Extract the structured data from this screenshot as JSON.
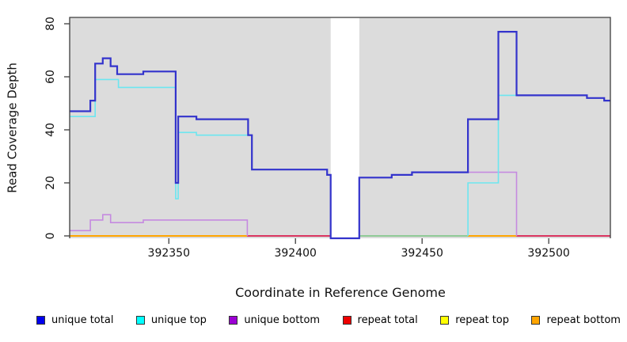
{
  "chart_data": {
    "type": "line",
    "step": true,
    "title": "",
    "xlabel": "Coordinate in Reference Genome",
    "ylabel": "Read Coverage Depth",
    "x_ticks": [
      392350,
      392400,
      392450,
      392500
    ],
    "y_ticks": [
      0,
      20,
      40,
      60,
      80
    ],
    "xlim": [
      392310.84,
      392524.34
    ],
    "ylim": [
      -0.9,
      82.39
    ],
    "grid": false,
    "plot_bg": "#dcdcdc",
    "frame_color": "#3d3d3d",
    "no_data_gap": {
      "from": 392413.9,
      "to": 392425.2
    },
    "series": [
      {
        "name": "unique total",
        "color": "#3333cc",
        "width": 2.2,
        "paths": [
          {
            "pts": [
              [
                392310.84,
                47
              ],
              [
                392319.0,
                51
              ],
              [
                392320.9,
                65
              ],
              [
                392323.9,
                67
              ],
              [
                392327.0,
                64
              ],
              [
                392329.6,
                61
              ],
              [
                392339.9,
                62
              ],
              [
                392352.7,
                20
              ],
              [
                392353.7,
                45
              ],
              [
                392360.9,
                44
              ],
              [
                392381.3,
                38
              ],
              [
                392382.8,
                25
              ],
              [
                392412.5,
                23
              ],
              [
                392413.9,
                -0.9
              ],
              [
                392425.2,
                22
              ],
              [
                392438.0,
                23
              ],
              [
                392446.0,
                24
              ],
              [
                392468.1,
                44
              ],
              [
                392480.1,
                77
              ],
              [
                392487.3,
                53
              ],
              [
                392515.1,
                52
              ],
              [
                392521.9,
                51
              ]
            ],
            "end": 392524.34
          }
        ]
      },
      {
        "name": "unique top",
        "color": "#6ce6f0",
        "width": 1.6,
        "paths": [
          {
            "pts": [
              [
                392310.84,
                45
              ],
              [
                392320.9,
                59
              ],
              [
                392330.1,
                56
              ],
              [
                392352.7,
                14
              ],
              [
                392353.7,
                39
              ],
              [
                392360.9,
                38
              ],
              [
                392382.8,
                25
              ],
              [
                392412.5,
                23
              ],
              [
                392413.9,
                0
              ]
            ],
            "end": 392413.9
          },
          {
            "pts": [
              [
                392468.1,
                0
              ],
              [
                392468.1,
                20
              ],
              [
                392480.1,
                53
              ],
              [
                392487.3,
                53
              ],
              [
                392515.1,
                52
              ],
              [
                392521.9,
                51
              ]
            ],
            "end": 392524.34
          }
        ]
      },
      {
        "name": "unique bottom",
        "color": "#c58ae0",
        "width": 1.6,
        "paths": [
          {
            "pts": [
              [
                392310.84,
                2
              ],
              [
                392319.0,
                6
              ],
              [
                392323.9,
                8
              ],
              [
                392327.0,
                5
              ],
              [
                392339.9,
                6
              ],
              [
                392381.0,
                0
              ]
            ],
            "end": 392381.0
          },
          {
            "pts": [
              [
                392425.2,
                -0.9
              ],
              [
                392425.2,
                22
              ],
              [
                392438.0,
                23
              ],
              [
                392446.0,
                24
              ],
              [
                392487.3,
                0
              ]
            ],
            "end": 392487.3
          }
        ]
      },
      {
        "name": "repeat total",
        "color": "#da3560",
        "width": 2,
        "constant_value": 0,
        "paths": []
      },
      {
        "name": "repeat top",
        "color": "#ffff00",
        "width": 2,
        "constant_value": 0,
        "paths": []
      },
      {
        "name": "repeat bottom",
        "color": "#ffa500",
        "width": 2,
        "constant_value": 0,
        "paths": []
      }
    ],
    "baseline_segments": [
      {
        "from": 392310.84,
        "to": 392380.9,
        "color": "#ffa500"
      },
      {
        "from": 392380.9,
        "to": 392414.0,
        "color": "#da3560"
      },
      {
        "from": 392425.0,
        "to": 392468.1,
        "color": "#8fca96"
      },
      {
        "from": 392468.1,
        "to": 392487.3,
        "color": "#ffa500"
      },
      {
        "from": 392487.3,
        "to": 392524.34,
        "color": "#da3560"
      }
    ],
    "legend": {
      "position": "bottom",
      "items": [
        {
          "label": "unique total",
          "color": "#0000ee"
        },
        {
          "label": "unique top",
          "color": "#00ffff"
        },
        {
          "label": "unique bottom",
          "color": "#9c00d4"
        },
        {
          "label": "repeat total",
          "color": "#ee0000"
        },
        {
          "label": "repeat top",
          "color": "#ffff00"
        },
        {
          "label": "repeat bottom",
          "color": "#ffa500"
        }
      ]
    }
  }
}
